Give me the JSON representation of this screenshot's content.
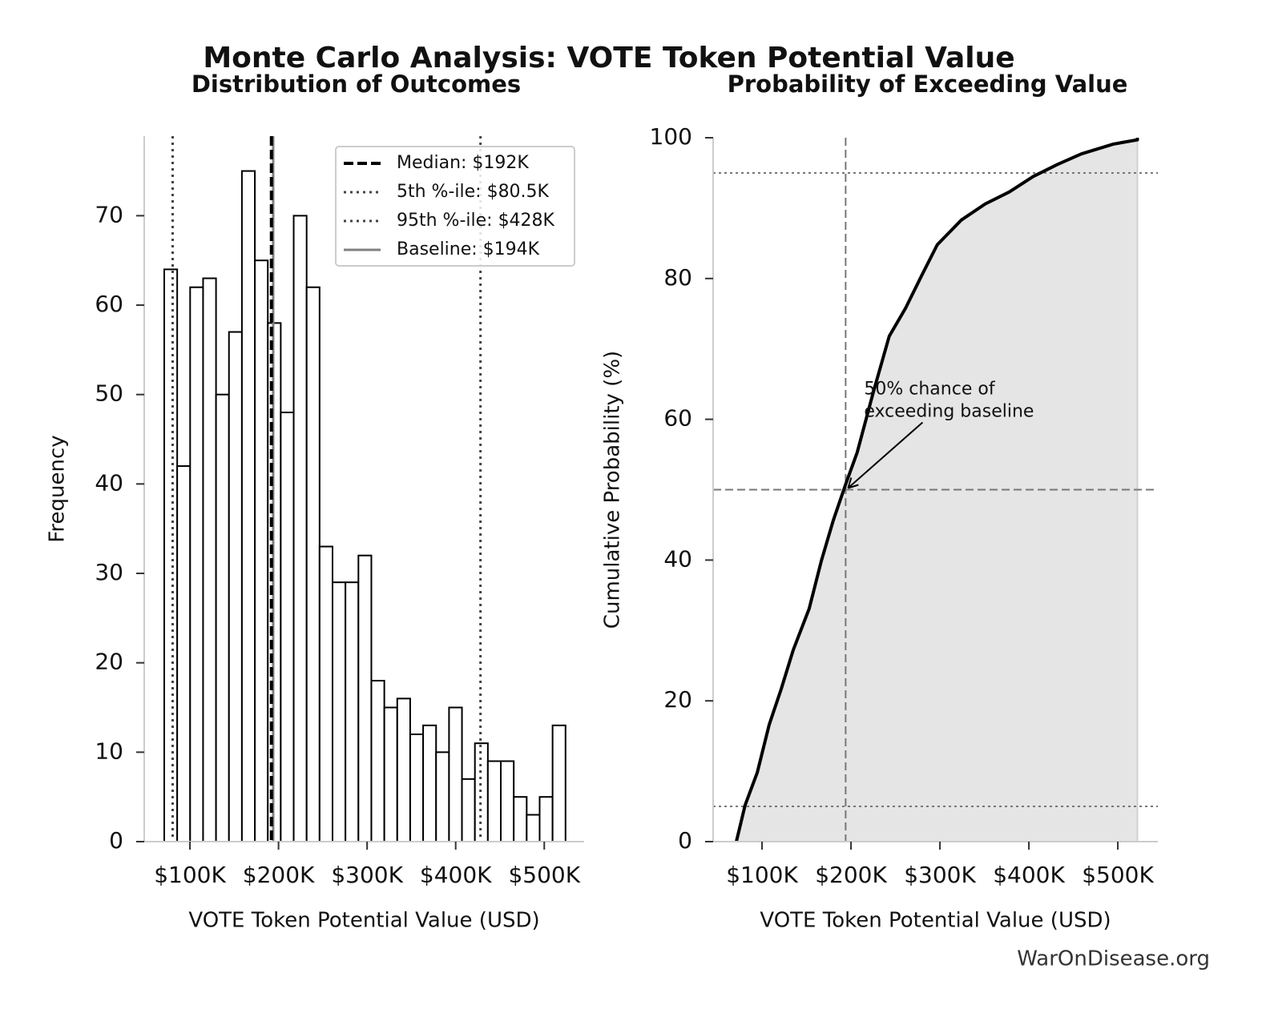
{
  "title": "Monte Carlo Analysis: VOTE Token Potential Value",
  "footer": "WarOnDisease.org",
  "chart_data": [
    {
      "type": "histogram",
      "title": "Distribution of Outcomes",
      "x_label": "VOTE Token Potential Value (USD)",
      "y_label": "Frequency",
      "bins": [
        71000,
        85613,
        100226,
        114839,
        129452,
        144065,
        158678,
        173291,
        187904,
        202517,
        217130,
        231743,
        246356,
        260969,
        275582,
        290195,
        304808,
        319421,
        334034,
        348647,
        363260,
        377873,
        392486,
        407099,
        421712,
        436325,
        450938,
        465551,
        480164,
        494777,
        509390,
        524003
      ],
      "counts": [
        64,
        42,
        62,
        63,
        50,
        57,
        75,
        65,
        58,
        48,
        70,
        62,
        33,
        29,
        29,
        32,
        18,
        15,
        16,
        12,
        13,
        10,
        15,
        7,
        11,
        9,
        9,
        5,
        3,
        5,
        13
      ],
      "color": "#ffffff",
      "edgecolor": "#000000",
      "xlim": [
        48400,
        545000
      ],
      "ylim": [
        0,
        78.9
      ],
      "xticks": [
        {
          "value": 100000,
          "label": "$100K"
        },
        {
          "value": 200000,
          "label": "$200K"
        },
        {
          "value": 300000,
          "label": "$300K"
        },
        {
          "value": 400000,
          "label": "$400K"
        },
        {
          "value": 500000,
          "label": "$500K"
        }
      ],
      "yticks": [
        0,
        10,
        20,
        30,
        40,
        50,
        60,
        70
      ],
      "reference_lines": [
        {
          "name": "Median: $192K",
          "value": 192000,
          "style": "dashed",
          "color": "#000000"
        },
        {
          "name": "5th %-ile: $80.5K",
          "value": 80500,
          "style": "dotted",
          "color": "#444444"
        },
        {
          "name": "95th %-ile: $428K",
          "value": 428000,
          "style": "dotted",
          "color": "#444444"
        },
        {
          "name": "Baseline: $194K",
          "value": 194000,
          "style": "solid",
          "color": "#808080"
        }
      ],
      "legend": "upper right"
    },
    {
      "type": "line",
      "title": "Probability of Exceeding Value",
      "x_label": "VOTE Token Potential Value (USD)",
      "y_label": "Cumulative Probability (%)",
      "x": [
        71100,
        81000,
        94600,
        108000,
        121600,
        135000,
        153000,
        166700,
        180000,
        193800,
        207000,
        225000,
        243000,
        261400,
        279000,
        297000,
        324000,
        351000,
        378000,
        405000,
        432000,
        459000,
        495000,
        522000,
        522000
      ],
      "values": [
        0,
        5.2,
        9.8,
        16.6,
        21.7,
        27.2,
        33.1,
        39.9,
        45.6,
        50.7,
        55.3,
        63.8,
        71.8,
        75.8,
        80.3,
        84.8,
        88.3,
        90.6,
        92.3,
        94.5,
        96.2,
        97.7,
        99.1,
        99.7,
        100
      ],
      "color": "#000000",
      "fill": "#e5e5e5",
      "xlim": [
        45000,
        545000
      ],
      "ylim": [
        0,
        100
      ],
      "xticks": [
        {
          "value": 100000,
          "label": "$100K"
        },
        {
          "value": 200000,
          "label": "$200K"
        },
        {
          "value": 300000,
          "label": "$300K"
        },
        {
          "value": 400000,
          "label": "$400K"
        },
        {
          "value": 500000,
          "label": "$500K"
        }
      ],
      "yticks": [
        0,
        20,
        40,
        60,
        80,
        100
      ],
      "vlines": [
        {
          "value": 194000,
          "style": "dashed"
        }
      ],
      "hlines": [
        {
          "value": 50,
          "style": "dashed"
        },
        {
          "value": 5,
          "style": "dotted"
        },
        {
          "value": 95,
          "style": "dotted"
        }
      ],
      "annotation": {
        "lines": [
          "50% chance of",
          "exceeding baseline"
        ],
        "x": 194000,
        "y": 50
      }
    }
  ]
}
